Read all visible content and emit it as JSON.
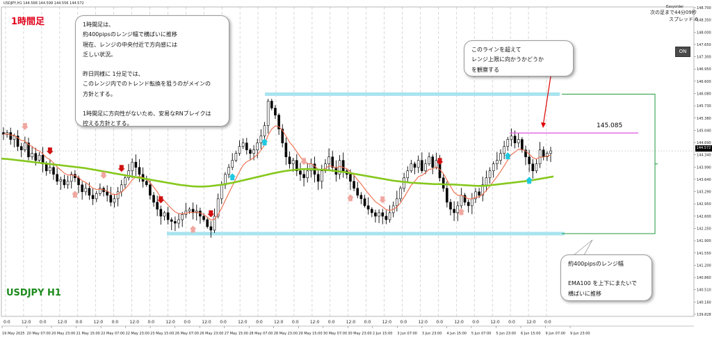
{
  "chart_data": {
    "type": "candlestick",
    "symbol": "USDJPY",
    "timeframe": "H1",
    "title": "1時間足",
    "symbol_label": "USDJPY H1",
    "header_text": "USDJPY,H1  144.568 144.599 144.556 144.572",
    "ylim": [
      139.828,
      148.7
    ],
    "grid": true,
    "y_ticks": [
      "148.700",
      "148.350",
      "148.000",
      "147.650",
      "147.300",
      "146.950",
      "146.600",
      "146.080",
      "145.730",
      "145.380",
      "145.040",
      "144.690",
      "144.340",
      "143.990",
      "143.640",
      "143.290",
      "142.950",
      "142.600",
      "142.250",
      "141.900",
      "141.550",
      "141.200",
      "140.860",
      "140.510",
      "140.160",
      "139.828"
    ],
    "x_ticks": [
      "19 May 2025",
      "20 May 07:00",
      "20 May 23:00",
      "21 May 15:00",
      "22 May 07:00",
      "22 May 23:00",
      "23 May 15:00",
      "26 May 07:00",
      "26 May 23:00",
      "27 May 15:00",
      "28 May 07:00",
      "28 May 23:00",
      "29 May 15:00",
      "30 May 07:00",
      "30 May 23:00",
      "2 Jun 15:00",
      "3 Jun 07:00",
      "3 Jun 23:00",
      "4 Jun 15:00",
      "5 Jun 07:00",
      "5 Jun 23:00",
      "6 Jun 15:00",
      "9 Jun 07:00",
      "9 Jun 23:00"
    ],
    "time_ticks": [
      "0:0",
      "12:0",
      "0:0",
      "12:0",
      "0:0",
      "12:0",
      "0:0",
      "12:0",
      "0:0",
      "12:0",
      "0:0",
      "12:0",
      "0:0",
      "12:0",
      "0:0",
      "12:0",
      "0:0",
      "12:0",
      "0:0",
      "12:0",
      "0:0",
      "12:0",
      "0:0",
      "12:0",
      "0:0",
      "12:0",
      "0:0",
      "12:0",
      "0:0",
      "12:0",
      "0:0"
    ],
    "current_price": "144.572",
    "close": [
      145.05,
      145.1,
      144.9,
      145.0,
      144.7,
      144.6,
      144.8,
      144.4,
      144.5,
      144.3,
      144.45,
      144.2,
      144.0,
      144.1,
      143.9,
      143.7,
      143.75,
      143.6,
      143.7,
      143.9,
      143.8,
      143.6,
      143.4,
      143.5,
      143.3,
      143.2,
      143.35,
      143.5,
      143.4,
      143.3,
      143.1,
      143.2,
      143.4,
      143.6,
      143.8,
      144.0,
      144.25,
      144.1,
      143.9,
      143.7,
      143.6,
      143.3,
      143.1,
      142.9,
      142.7,
      142.8,
      142.6,
      142.55,
      142.5,
      142.6,
      142.75,
      142.85,
      142.9,
      142.8,
      142.85,
      142.7,
      142.6,
      142.4,
      142.3,
      142.7,
      143.2,
      143.6,
      143.9,
      144.1,
      144.3,
      144.5,
      144.7,
      144.8,
      144.6,
      144.5,
      144.6,
      144.8,
      145.0,
      145.3,
      146.0,
      145.8,
      145.6,
      145.2,
      144.8,
      144.4,
      144.2,
      144.3,
      144.0,
      143.9,
      143.8,
      144.0,
      144.2,
      143.9,
      143.7,
      144.0,
      144.2,
      144.4,
      144.1,
      143.9,
      144.3,
      144.0,
      143.9,
      143.7,
      143.5,
      143.3,
      143.2,
      143.0,
      142.9,
      142.8,
      142.7,
      142.8,
      142.7,
      142.6,
      142.8,
      143.0,
      143.2,
      143.5,
      143.8,
      144.0,
      144.2,
      144.1,
      144.3,
      144.0,
      144.2,
      144.4,
      144.1,
      144.3,
      143.8,
      143.5,
      143.1,
      142.9,
      142.8,
      143.0,
      143.3,
      143.1,
      143.0,
      143.2,
      143.4,
      143.3,
      143.6,
      143.8,
      144.0,
      144.2,
      144.3,
      144.5,
      144.7,
      144.9,
      145.0,
      144.8,
      144.9,
      144.6,
      144.4,
      144.2,
      144.0,
      144.2,
      144.6,
      144.4,
      144.5,
      144.572
    ],
    "ema_period": 100,
    "ema": [
      144.35,
      144.34,
      144.32,
      144.3,
      144.28,
      144.26,
      144.24,
      144.22,
      144.2,
      144.18,
      144.16,
      144.14,
      144.12,
      144.1,
      144.08,
      144.05,
      144.02,
      143.99,
      143.96,
      143.93,
      143.9,
      143.87,
      143.84,
      143.81,
      143.78,
      143.75,
      143.72,
      143.69,
      143.66,
      143.63,
      143.6,
      143.58,
      143.56,
      143.55,
      143.55,
      143.56,
      143.58,
      143.6,
      143.63,
      143.66,
      143.7,
      143.74,
      143.78,
      143.82,
      143.86,
      143.9,
      143.94,
      143.97,
      144.0,
      144.02,
      144.04,
      144.05,
      144.05,
      144.04,
      144.03,
      144.02,
      144.0,
      143.98,
      143.96,
      143.93,
      143.9,
      143.87,
      143.84,
      143.81,
      143.78,
      143.75,
      143.72,
      143.7,
      143.68,
      143.66,
      143.65,
      143.64,
      143.63,
      143.62,
      143.62,
      143.61,
      143.61,
      143.6,
      143.59,
      143.58,
      143.57,
      143.57,
      143.58,
      143.6,
      143.62,
      143.64,
      143.66,
      143.68,
      143.7,
      143.72,
      143.75,
      143.78,
      143.81,
      143.84
    ],
    "range_high": 146.2,
    "range_low": 142.2,
    "watch_line": 145.085,
    "range_width_pips": 400
  },
  "notes": {
    "analysis": [
      "1時間足は、",
      "約400pipsのレンジ幅で横ばいに推移",
      "現在、レンジの中央付近で方向感には",
      "乏しい状況。",
      "昨日同様に 1分足では、",
      "このレンジ内でのトレンド転換を狙うのがメインの",
      "方針とする。",
      "1時間足に方向性がないため、安易なRNブレイクは",
      "控える方針とする。"
    ],
    "watch": [
      "このラインを超えて",
      "レンジ上限に向かうかどうか",
      "を観察する"
    ],
    "range": [
      "約400pipsのレンジ幅",
      "EMA100 を上下にまたいで",
      "横ばいに推移"
    ]
  },
  "terminal": {
    "ea_name": "Easyorder",
    "next_bar": "次の足まで44分09秒",
    "spread": "スプレッド:6",
    "on_button": "ON"
  },
  "colors": {
    "range_band": "#a8e4ef",
    "ema100": "#86c81e",
    "fast_ma": "#ef6a4a",
    "watch_line": "#e060e0",
    "bracket": "#1c9a3a",
    "arrow_up": "#20c8e0",
    "arrow_down": "#d01010",
    "arrow_fade": "#f0a8a0",
    "title": "#e0001b",
    "symbol_label": "#1c8a1c",
    "candle": "#000000"
  }
}
